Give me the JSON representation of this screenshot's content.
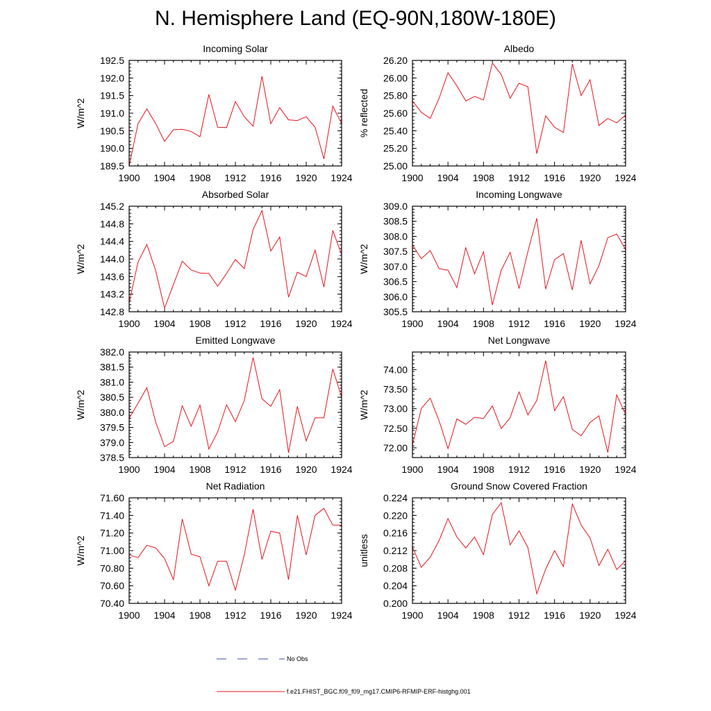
{
  "figure_title": "N. Hemisphere Land (EQ-90N,180W-180E)",
  "colors": {
    "series": "#e8141c",
    "obs": "#3b4fa8",
    "axis": "#000000"
  },
  "legend": {
    "obs_label": "No Obs",
    "model_label": "f.e21.FHIST_BGC.f09_f09_mg17.CMIP6-RFMIP-ERF-histghg.001"
  },
  "chart_data": [
    {
      "type": "line",
      "title": "Incoming Solar",
      "xlabel": "",
      "ylabel": "W/m^2",
      "xlim": [
        1900,
        1924
      ],
      "ylim": [
        189.5,
        192.5
      ],
      "x_ticks": [
        1900,
        1904,
        1908,
        1912,
        1916,
        1920,
        1924
      ],
      "x_tick_labels": [
        "1900",
        "1904",
        "1908",
        "1912",
        "1916",
        "1920",
        "1924"
      ],
      "y_ticks": [
        189.5,
        190.0,
        190.5,
        191.0,
        191.5,
        192.0,
        192.5
      ],
      "y_tick_labels": [
        "189.5",
        "190.0",
        "190.5",
        "191.0",
        "191.5",
        "192.0",
        "192.5"
      ],
      "x": [
        1900,
        1901,
        1902,
        1903,
        1904,
        1905,
        1906,
        1907,
        1908,
        1909,
        1910,
        1911,
        1912,
        1913,
        1914,
        1915,
        1916,
        1917,
        1918,
        1919,
        1920,
        1921,
        1922,
        1923,
        1924
      ],
      "values": [
        189.5,
        190.7,
        191.12,
        190.7,
        190.2,
        190.53,
        190.54,
        190.48,
        190.33,
        191.53,
        190.6,
        190.59,
        191.33,
        190.9,
        190.63,
        192.05,
        190.7,
        191.16,
        190.81,
        190.79,
        190.9,
        190.6,
        189.7,
        191.2,
        190.7
      ]
    },
    {
      "type": "line",
      "title": "Albedo",
      "xlabel": "",
      "ylabel": "% reflected",
      "xlim": [
        1900,
        1924
      ],
      "ylim": [
        25.0,
        26.2
      ],
      "x_ticks": [
        1900,
        1904,
        1908,
        1912,
        1916,
        1920,
        1924
      ],
      "x_tick_labels": [
        "1900",
        "1904",
        "1908",
        "1912",
        "1916",
        "1920",
        "1924"
      ],
      "y_ticks": [
        25.0,
        25.2,
        25.4,
        25.6,
        25.8,
        26.0,
        26.2
      ],
      "y_tick_labels": [
        "25.00",
        "25.20",
        "25.40",
        "25.60",
        "25.80",
        "26.00",
        "26.20"
      ],
      "x": [
        1900,
        1901,
        1902,
        1903,
        1904,
        1905,
        1906,
        1907,
        1908,
        1909,
        1910,
        1911,
        1912,
        1913,
        1914,
        1915,
        1916,
        1917,
        1918,
        1919,
        1920,
        1921,
        1922,
        1923,
        1924
      ],
      "values": [
        25.74,
        25.61,
        25.54,
        25.77,
        26.06,
        25.91,
        25.74,
        25.79,
        25.75,
        26.17,
        26.04,
        25.77,
        25.94,
        25.9,
        25.14,
        25.57,
        25.44,
        25.38,
        26.16,
        25.8,
        25.98,
        25.46,
        25.54,
        25.49,
        25.58
      ]
    },
    {
      "type": "line",
      "title": "Absorbed Solar",
      "xlabel": "",
      "ylabel": "W/m^2",
      "xlim": [
        1900,
        1924
      ],
      "ylim": [
        142.8,
        145.2
      ],
      "x_ticks": [
        1900,
        1904,
        1908,
        1912,
        1916,
        1920,
        1924
      ],
      "x_tick_labels": [
        "1900",
        "1904",
        "1908",
        "1912",
        "1916",
        "1920",
        "1924"
      ],
      "y_ticks": [
        142.8,
        143.2,
        143.6,
        144.0,
        144.4,
        144.8,
        145.2
      ],
      "y_tick_labels": [
        "142.8",
        "143.2",
        "143.6",
        "144.0",
        "144.4",
        "144.8",
        "145.2"
      ],
      "x": [
        1900,
        1901,
        1902,
        1903,
        1904,
        1905,
        1906,
        1907,
        1908,
        1909,
        1910,
        1911,
        1912,
        1913,
        1914,
        1915,
        1916,
        1917,
        1918,
        1919,
        1920,
        1921,
        1922,
        1923,
        1924
      ],
      "values": [
        143.0,
        143.93,
        144.33,
        143.73,
        142.88,
        143.42,
        143.95,
        143.75,
        143.68,
        143.67,
        143.38,
        143.67,
        143.99,
        143.78,
        144.67,
        145.1,
        144.18,
        144.5,
        143.13,
        143.7,
        143.6,
        144.2,
        143.36,
        144.65,
        144.1
      ]
    },
    {
      "type": "line",
      "title": "Incoming Longwave",
      "xlabel": "",
      "ylabel": "W/m^2",
      "xlim": [
        1900,
        1924
      ],
      "ylim": [
        305.5,
        309.0
      ],
      "x_ticks": [
        1900,
        1904,
        1908,
        1912,
        1916,
        1920,
        1924
      ],
      "x_tick_labels": [
        "1900",
        "1904",
        "1908",
        "1912",
        "1916",
        "1920",
        "1924"
      ],
      "y_ticks": [
        305.5,
        306.0,
        306.5,
        307.0,
        307.5,
        308.0,
        308.5,
        309.0
      ],
      "y_tick_labels": [
        "305.5",
        "306.0",
        "306.5",
        "307.0",
        "307.5",
        "308.0",
        "308.5",
        "309.0"
      ],
      "x": [
        1900,
        1901,
        1902,
        1903,
        1904,
        1905,
        1906,
        1907,
        1908,
        1909,
        1910,
        1911,
        1912,
        1913,
        1914,
        1915,
        1916,
        1917,
        1918,
        1919,
        1920,
        1921,
        1922,
        1923,
        1924
      ],
      "values": [
        307.72,
        307.26,
        307.53,
        306.93,
        306.88,
        306.3,
        307.62,
        306.76,
        307.49,
        305.72,
        306.88,
        307.47,
        306.27,
        307.5,
        308.6,
        306.25,
        307.23,
        307.43,
        306.22,
        307.87,
        306.42,
        307.03,
        307.96,
        308.08,
        307.56
      ]
    },
    {
      "type": "line",
      "title": "Emitted Longwave",
      "xlabel": "",
      "ylabel": "W/m^2",
      "xlim": [
        1900,
        1924
      ],
      "ylim": [
        378.5,
        382.0
      ],
      "x_ticks": [
        1900,
        1904,
        1908,
        1912,
        1916,
        1920,
        1924
      ],
      "x_tick_labels": [
        "1900",
        "1904",
        "1908",
        "1912",
        "1916",
        "1920",
        "1924"
      ],
      "y_ticks": [
        378.5,
        379.0,
        379.5,
        380.0,
        380.5,
        381.0,
        381.5,
        382.0
      ],
      "y_tick_labels": [
        "378.5",
        "379.0",
        "379.5",
        "380.0",
        "380.5",
        "381.0",
        "381.5",
        "382.0"
      ],
      "x": [
        1900,
        1901,
        1902,
        1903,
        1904,
        1905,
        1906,
        1907,
        1908,
        1909,
        1910,
        1911,
        1912,
        1913,
        1914,
        1915,
        1916,
        1917,
        1918,
        1919,
        1920,
        1921,
        1922,
        1923,
        1924
      ],
      "values": [
        379.8,
        380.3,
        380.82,
        379.67,
        378.86,
        379.04,
        380.22,
        379.54,
        380.24,
        378.78,
        379.35,
        380.25,
        379.69,
        380.39,
        381.82,
        380.45,
        380.2,
        380.75,
        378.66,
        380.2,
        379.05,
        379.82,
        379.82,
        381.44,
        380.5
      ]
    },
    {
      "type": "line",
      "title": "Net Longwave",
      "xlabel": "",
      "ylabel": "W/m^2",
      "xlim": [
        1900,
        1924
      ],
      "ylim": [
        71.75,
        74.45
      ],
      "x_ticks": [
        1900,
        1904,
        1908,
        1912,
        1916,
        1920,
        1924
      ],
      "x_tick_labels": [
        "1900",
        "1904",
        "1908",
        "1912",
        "1916",
        "1920",
        "1924"
      ],
      "y_ticks": [
        72.0,
        72.5,
        73.0,
        73.5,
        74.0
      ],
      "y_tick_labels": [
        "72.00",
        "72.50",
        "73.00",
        "73.50",
        "74.00"
      ],
      "x": [
        1900,
        1901,
        1902,
        1903,
        1904,
        1905,
        1906,
        1907,
        1908,
        1909,
        1910,
        1911,
        1912,
        1913,
        1914,
        1915,
        1916,
        1917,
        1918,
        1919,
        1920,
        1921,
        1922,
        1923,
        1924
      ],
      "values": [
        72.07,
        73.01,
        73.27,
        72.69,
        71.98,
        72.74,
        72.6,
        72.78,
        72.75,
        73.07,
        72.49,
        72.77,
        73.43,
        72.84,
        73.21,
        74.23,
        72.95,
        73.31,
        72.47,
        72.31,
        72.65,
        72.82,
        71.88,
        73.35,
        72.85
      ]
    },
    {
      "type": "line",
      "title": "Net Radiation",
      "xlabel": "",
      "ylabel": "W/m^2",
      "xlim": [
        1900,
        1924
      ],
      "ylim": [
        70.4,
        71.6
      ],
      "x_ticks": [
        1900,
        1904,
        1908,
        1912,
        1916,
        1920,
        1924
      ],
      "x_tick_labels": [
        "1900",
        "1904",
        "1908",
        "1912",
        "1916",
        "1920",
        "1924"
      ],
      "y_ticks": [
        70.4,
        70.6,
        70.8,
        71.0,
        71.2,
        71.4,
        71.6
      ],
      "y_tick_labels": [
        "70.40",
        "70.60",
        "70.80",
        "71.00",
        "71.20",
        "71.40",
        "71.60"
      ],
      "x": [
        1900,
        1901,
        1902,
        1903,
        1904,
        1905,
        1906,
        1907,
        1908,
        1909,
        1910,
        1911,
        1912,
        1913,
        1914,
        1915,
        1916,
        1917,
        1918,
        1919,
        1920,
        1921,
        1922,
        1923,
        1924
      ],
      "values": [
        70.95,
        70.92,
        71.06,
        71.03,
        70.91,
        70.67,
        71.36,
        70.96,
        70.93,
        70.6,
        70.88,
        70.88,
        70.55,
        70.95,
        71.47,
        70.9,
        71.22,
        71.2,
        70.67,
        71.4,
        70.95,
        71.4,
        71.48,
        71.29,
        71.29
      ]
    },
    {
      "type": "line",
      "title": "Ground Snow Covered Fraction",
      "xlabel": "",
      "ylabel": "unitless",
      "xlim": [
        1900,
        1924
      ],
      "ylim": [
        0.2,
        0.224
      ],
      "x_ticks": [
        1900,
        1904,
        1908,
        1912,
        1916,
        1920,
        1924
      ],
      "x_tick_labels": [
        "1900",
        "1904",
        "1908",
        "1912",
        "1916",
        "1920",
        "1924"
      ],
      "y_ticks": [
        0.2,
        0.204,
        0.208,
        0.212,
        0.216,
        0.22,
        0.224
      ],
      "y_tick_labels": [
        "0.200",
        "0.204",
        "0.208",
        "0.212",
        "0.216",
        "0.220",
        "0.224"
      ],
      "x": [
        1900,
        1901,
        1902,
        1903,
        1904,
        1905,
        1906,
        1907,
        1908,
        1909,
        1910,
        1911,
        1912,
        1913,
        1914,
        1915,
        1916,
        1917,
        1918,
        1919,
        1920,
        1921,
        1922,
        1923,
        1924
      ],
      "values": [
        0.2128,
        0.2082,
        0.2105,
        0.2143,
        0.2193,
        0.2151,
        0.2126,
        0.2151,
        0.2111,
        0.2202,
        0.2229,
        0.2133,
        0.2165,
        0.2127,
        0.2022,
        0.2078,
        0.212,
        0.2084,
        0.2226,
        0.2178,
        0.2149,
        0.2086,
        0.2123,
        0.2077,
        0.2097
      ]
    }
  ]
}
